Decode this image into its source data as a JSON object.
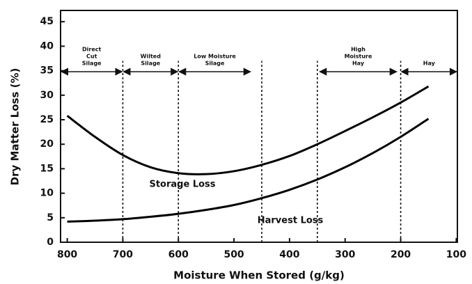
{
  "chart_data": {
    "type": "line",
    "xlabel": "Moisture When Stored (g/kg)",
    "ylabel": "Dry Matter Loss (%)",
    "x": [
      800,
      750,
      700,
      650,
      600,
      550,
      500,
      450,
      400,
      350,
      300,
      250,
      200,
      150
    ],
    "series": [
      {
        "name": "Storage Loss",
        "color": "#000000",
        "values": [
          25.8,
          21.5,
          17.8,
          15.3,
          14.1,
          13.9,
          14.5,
          15.8,
          17.6,
          20,
          22.7,
          25.5,
          28.5,
          31.8
        ]
      },
      {
        "name": "Harvest Loss",
        "color": "#000000",
        "values": [
          4.2,
          4.4,
          4.7,
          5.2,
          5.8,
          6.6,
          7.6,
          9,
          10.7,
          12.8,
          15.3,
          18.2,
          21.5,
          25.2
        ]
      }
    ],
    "xlim": [
      812,
      98
    ],
    "ylim": [
      0,
      47.3
    ],
    "xticks": [
      800,
      700,
      600,
      500,
      400,
      300,
      200,
      100
    ],
    "yticks": [
      0,
      5,
      10,
      15,
      20,
      25,
      30,
      35,
      40,
      45
    ],
    "vlines": [
      700,
      600,
      450,
      350,
      200
    ],
    "vline_top": 37,
    "regions": [
      {
        "lines": [
          "Direct",
          "Cut",
          "Silage"
        ],
        "from": 812,
        "to": 700,
        "y": 34.8
      },
      {
        "lines": [
          "Wilted",
          "Silage"
        ],
        "from": 700,
        "to": 600,
        "y": 34.8
      },
      {
        "lines": [
          "Low Moisture",
          "Silage"
        ],
        "from": 600,
        "to": 469,
        "y": 34.8
      },
      {
        "lines": [
          "High",
          "Moisture",
          "Hay"
        ],
        "from": 347,
        "to": 206,
        "y": 34.8
      },
      {
        "lines": [
          "Hay"
        ],
        "from": 200,
        "to": 98,
        "y": 34.8
      }
    ]
  }
}
